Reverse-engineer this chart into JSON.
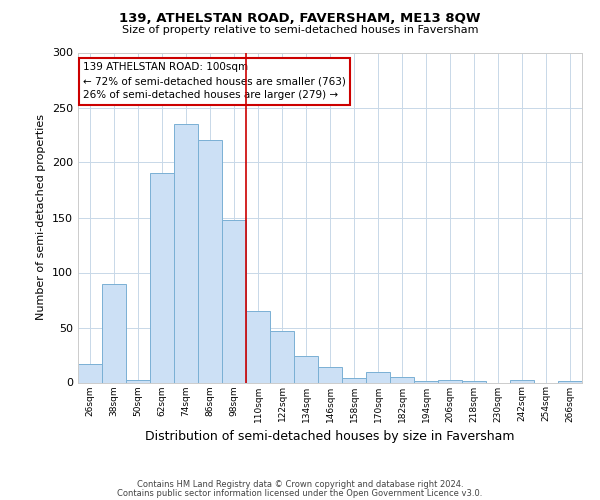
{
  "title": "139, ATHELSTAN ROAD, FAVERSHAM, ME13 8QW",
  "subtitle": "Size of property relative to semi-detached houses in Faversham",
  "xlabel": "Distribution of semi-detached houses by size in Faversham",
  "ylabel": "Number of semi-detached properties",
  "bar_labels": [
    "26sqm",
    "38sqm",
    "50sqm",
    "62sqm",
    "74sqm",
    "86sqm",
    "98sqm",
    "110sqm",
    "122sqm",
    "134sqm",
    "146sqm",
    "158sqm",
    "170sqm",
    "182sqm",
    "194sqm",
    "206sqm",
    "218sqm",
    "230sqm",
    "242sqm",
    "254sqm",
    "266sqm"
  ],
  "bar_values": [
    17,
    90,
    2,
    190,
    235,
    220,
    148,
    65,
    47,
    24,
    14,
    4,
    10,
    5,
    1,
    2,
    1,
    0,
    2,
    0,
    1
  ],
  "bar_color": "#cce0f5",
  "bar_edge_color": "#7ab0d4",
  "vline_color": "#cc0000",
  "vline_index": 6.5,
  "annotation_title": "139 ATHELSTAN ROAD: 100sqm",
  "annotation_line1": "← 72% of semi-detached houses are smaller (763)",
  "annotation_line2": "26% of semi-detached houses are larger (279) →",
  "annotation_box_color": "#ffffff",
  "annotation_box_edge": "#cc0000",
  "ylim": [
    0,
    300
  ],
  "yticks": [
    0,
    50,
    100,
    150,
    200,
    250,
    300
  ],
  "footer1": "Contains HM Land Registry data © Crown copyright and database right 2024.",
  "footer2": "Contains public sector information licensed under the Open Government Licence v3.0.",
  "background_color": "#ffffff",
  "grid_color": "#c8d8e8"
}
